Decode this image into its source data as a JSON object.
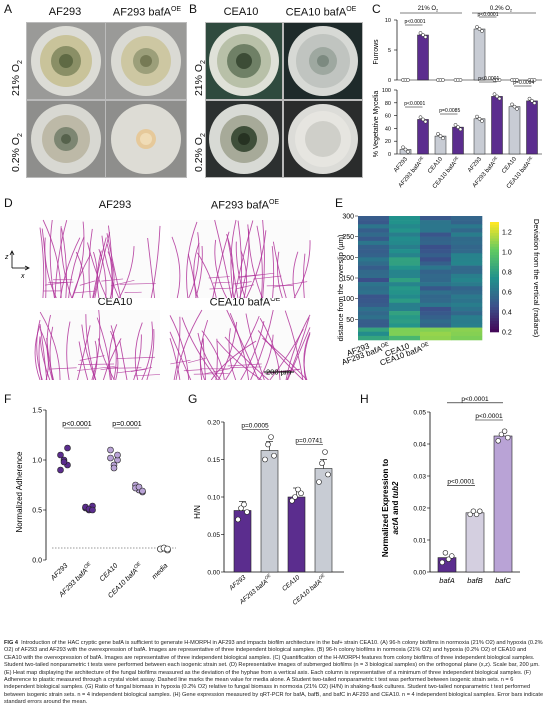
{
  "panels": {
    "A": {
      "letter": "A",
      "labels": [
        "AF293",
        "AF293 bafA"
      ],
      "sup": "OE",
      "rows": [
        "21% O",
        "0.2% O"
      ],
      "o2sub": "2"
    },
    "B": {
      "letter": "B",
      "labels": [
        "CEA10",
        "CEA10 bafA"
      ],
      "sup": "OE"
    },
    "C": {
      "letter": "C",
      "top_labels": [
        "21% O",
        "0.2% O"
      ],
      "sub": "2",
      "furrows": {
        "ylabel": "Furrows",
        "yticks": [
          "0",
          "5",
          "10"
        ],
        "p": [
          "p<0.0001",
          "p<0.0001"
        ]
      },
      "veg": {
        "ylabel": "% Vegetative Mycelia",
        "yticks": [
          "0",
          "20",
          "40",
          "60",
          "80",
          "100"
        ],
        "p": [
          "p<0.0001",
          "p=0.0085",
          "p<0.0001",
          "p=0.0094"
        ]
      },
      "xlabels": [
        "AF293",
        "AF293 bafA",
        "CEA10",
        "CEA10 bafA",
        "AF293",
        "AF293 bafA",
        "CEA10",
        "CEA10 bafA"
      ]
    },
    "D": {
      "letter": "D",
      "labels": [
        "AF293",
        "AF293 bafA",
        "CEA10",
        "CEA10 bafA"
      ],
      "sup": "OE",
      "axis_z": "z",
      "axis_x": "x",
      "scalebar": "200 µm"
    },
    "E": {
      "letter": "E",
      "ylabel": "distance from the coverslip (µm)",
      "yticks": [
        "300",
        "250",
        "200",
        "150",
        "100",
        "50"
      ],
      "xlabels": [
        "AF293",
        "AF293 bafA",
        "CEA10",
        "CEA10 bafA"
      ],
      "sup": "OE",
      "cbar_label": "Deviation from the vertical (radians)",
      "cbar_ticks": [
        "1.2",
        "1.0",
        "0.8",
        "0.6",
        "0.4",
        "0.2"
      ]
    },
    "F": {
      "letter": "F",
      "ylabel": "Normalized Adherence",
      "yticks": [
        "0.0",
        "0.5",
        "1.0",
        "1.5"
      ],
      "p": [
        "p<0.0001",
        "p=0.0001"
      ],
      "xlabels": [
        "AF293",
        "AF293 bafA",
        "CEA10",
        "CEA10 bafA",
        "media"
      ],
      "sup": "OE"
    },
    "G": {
      "letter": "G",
      "ylabel": "H/N",
      "yticks": [
        "0.00",
        "0.05",
        "0.10",
        "0.15",
        "0.20"
      ],
      "p": [
        "p=0.0005",
        "p=0.0741"
      ],
      "xlabels": [
        "AF293",
        "AF293 bafA",
        "CEA10",
        "CEA10 bafA"
      ],
      "sup": "OE"
    },
    "H": {
      "letter": "H",
      "ylabel1": "Normalized Expression to",
      "ylabel2a": "actA",
      "ylabel2b": " and ",
      "ylabel2c": "tub2",
      "yticks": [
        "0.00",
        "0.01",
        "0.02",
        "0.03",
        "0.04",
        "0.05"
      ],
      "p": [
        "p<0.0001",
        "p<0.0001",
        "p<0.0001"
      ],
      "xlabels": [
        "bafA",
        "bafB",
        "bafC"
      ]
    }
  },
  "chart_data": [
    {
      "type": "bar",
      "panel": "C-top",
      "ylabel": "Furrows",
      "ylim": [
        0,
        10
      ],
      "categories": [
        "AF293",
        "AF293 bafA OE",
        "CEA10",
        "CEA10 bafA OE",
        "AF293",
        "AF293 bafA OE",
        "CEA10",
        "CEA10 bafA OE"
      ],
      "values": [
        0,
        7.5,
        0,
        0,
        8.5,
        0,
        0,
        0
      ]
    },
    {
      "type": "bar",
      "panel": "C-bottom",
      "ylabel": "% Vegetative Mycelia",
      "ylim": [
        0,
        100
      ],
      "categories": [
        "AF293",
        "AF293 bafA OE",
        "CEA10",
        "CEA10 bafA OE",
        "AF293",
        "AF293 bafA OE",
        "CEA10",
        "CEA10 bafA OE"
      ],
      "values": [
        7,
        54,
        28,
        42,
        55,
        90,
        74,
        83
      ]
    },
    {
      "type": "heatmap",
      "panel": "E",
      "ylabel": "distance from the coverslip (µm)",
      "ylim": [
        0,
        300
      ],
      "categories": [
        "AF293",
        "AF293 bafA OE",
        "CEA10",
        "CEA10 bafA OE"
      ],
      "colorbar_range": [
        0.2,
        1.3
      ]
    },
    {
      "type": "scatter",
      "panel": "F",
      "ylabel": "Normalized Adherence",
      "ylim": [
        0,
        1.5
      ],
      "categories": [
        "AF293",
        "AF293 bafA OE",
        "CEA10",
        "CEA10 bafA OE",
        "media"
      ],
      "series": [
        {
          "values": [
            [
              1.05,
              1.0,
              0.95,
              0.9,
              0.98,
              1.12
            ],
            [
              0.52,
              0.5,
              0.54,
              0.53,
              0.51,
              0.5
            ],
            [
              1.02,
              0.95,
              1.0,
              1.1,
              0.92,
              1.05
            ],
            [
              0.75,
              0.7,
              0.68,
              0.72,
              0.73,
              0.69
            ],
            [
              0.11,
              0.12,
              0.1,
              0.11,
              0.12,
              0.11
            ]
          ]
        }
      ],
      "reference_line": 0.12
    },
    {
      "type": "bar",
      "panel": "G",
      "ylabel": "H/N",
      "ylim": [
        0,
        0.2
      ],
      "categories": [
        "AF293",
        "AF293 bafA OE",
        "CEA10",
        "CEA10 bafA OE"
      ],
      "values": [
        0.082,
        0.162,
        0.1,
        0.138
      ],
      "points": [
        [
          0.07,
          0.085,
          0.09,
          0.08
        ],
        [
          0.15,
          0.17,
          0.18,
          0.155
        ],
        [
          0.095,
          0.1,
          0.11,
          0.105
        ],
        [
          0.12,
          0.145,
          0.16,
          0.13
        ]
      ]
    },
    {
      "type": "bar",
      "panel": "H",
      "ylabel": "Normalized Expression to actA and tub2",
      "ylim": [
        0,
        0.05
      ],
      "categories": [
        "bafA",
        "bafB",
        "bafC"
      ],
      "values": [
        0.0045,
        0.0185,
        0.0425
      ],
      "points": [
        [
          0.003,
          0.006,
          0.004,
          0.005
        ],
        [
          0.018,
          0.019,
          0.018,
          0.019
        ],
        [
          0.041,
          0.043,
          0.044,
          0.042
        ]
      ]
    }
  ],
  "caption": {
    "head": "FIG 4",
    "text": "Introduction of the HAC cryptic gene bafA is sufficient to generate H-MORPH in AF293 and impacts biofilm architecture in the baf+ strain CEA10. (A) 96-h colony biofilms in normoxia (21% O2) and hypoxia (0.2% O2) of AF293 and AF293 with the overexpression of bafA. Images are representative of three independent biological samples. (B) 96-h colony biofilms in normoxia (21% O2) and hypoxia (0.2% O2) of CEA10 and CEA10 with the overexpression of bafA. Images are representative of three independent biological samples. (C) Quantification of the H-MORPH features from colony biofilms of three independent biological samples. Student two-tailed nonparametric t tests were performed between each isogenic strain set. (D) Representative images of submerged biofilms (n = 3 biological samples) on the orthogonal plane (x,z). Scale bar, 200 µm. (E) Heat map displaying the architecture of the fungal biofilms measured as the deviation of the hyphae from a vertical axis. Each column is representative of a minimum of three independent biological samples. (F) Adherence to plastic measured through a crystal violet assay. Dashed line marks the mean value for media alone. A Student two-tailed nonparametric t test was performed between isogenic strain sets. n = 6 independent biological samples. (G) Ratio of fungal biomass in hypoxia (0.2% O2) relative to fungal biomass in normoxia (21% O2) (H/N) in shaking-flask cultures. Student two-tailed nonparametric t test performed between isogenic strain sets. n = 4 independent biological samples. (H) Gene expression measured by qRT-PCR for bafA, bafB, and bafC in AF293 and CEA10. n = 4 independent biological samples. Error bars indicate standard errors around the mean."
  },
  "colors": {
    "purple": "#5b2d8e",
    "lightpurple": "#b9a3d6",
    "grey": "#c8ccd4",
    "hypha": "#b0329a"
  }
}
